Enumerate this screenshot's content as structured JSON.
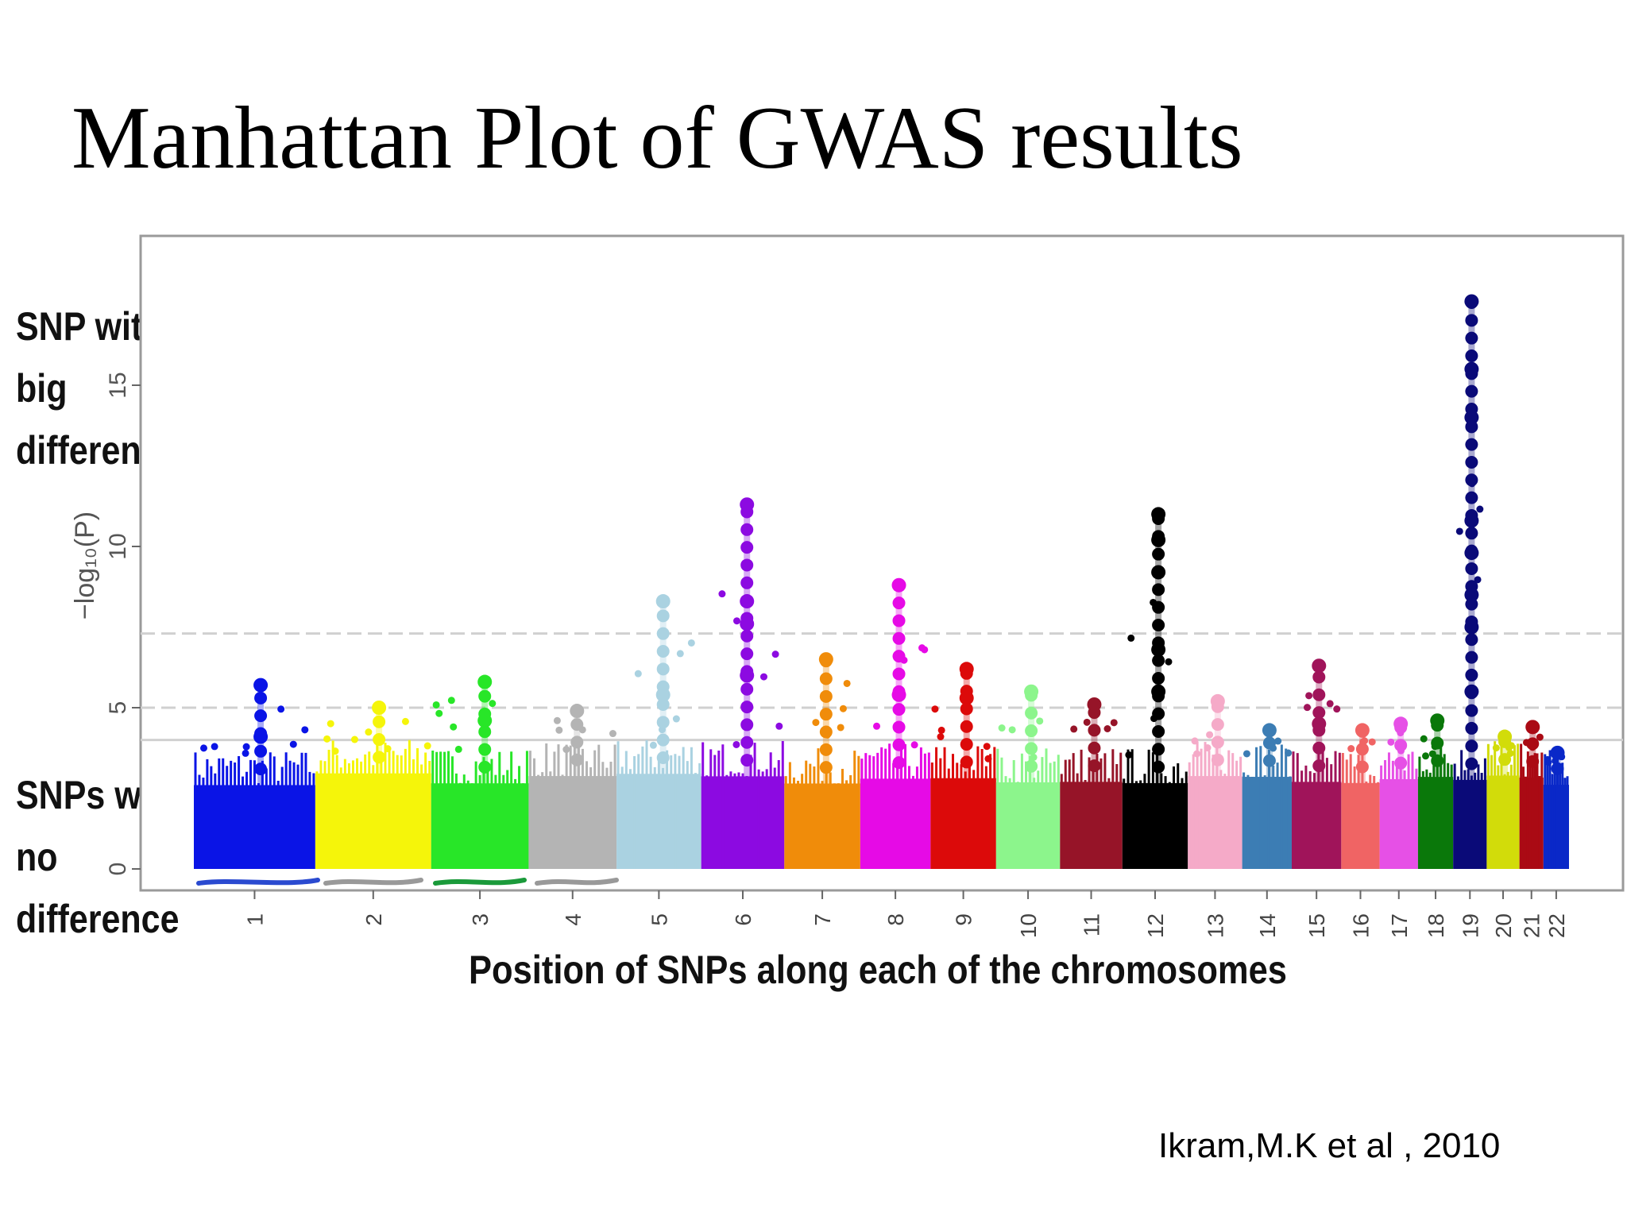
{
  "slide": {
    "title": "Manhattan Plot of GWAS results",
    "annotation_top": [
      "SNP with",
      "big",
      "difference"
    ],
    "annotation_bottom": [
      "SNPs with",
      "no",
      "difference"
    ],
    "citation": "Ikram,M.K et al , 2010"
  },
  "chart_data": {
    "type": "scatter",
    "title": "",
    "xlabel": "Position of SNPs along each of the chromosomes",
    "ylabel": "−log₁₀(P)",
    "ylim": [
      0,
      19
    ],
    "yticks": [
      0,
      5,
      10,
      15
    ],
    "grid": false,
    "significance_lines": [
      7.3,
      5.0,
      4.0
    ],
    "chromosomes": [
      {
        "label": "1",
        "color": "#0a14e6",
        "max": 5.7,
        "peaks": [
          5.7,
          4.1
        ]
      },
      {
        "label": "2",
        "color": "#f5f50a",
        "max": 5.0,
        "peaks": [
          5.0
        ]
      },
      {
        "label": "3",
        "color": "#28e628",
        "max": 5.8,
        "peaks": [
          5.8,
          4.6
        ]
      },
      {
        "label": "4",
        "color": "#b4b4b4",
        "max": 4.9,
        "peaks": [
          4.9
        ]
      },
      {
        "label": "5",
        "color": "#aad2e1",
        "max": 8.3,
        "peaks": [
          8.3,
          5.4
        ]
      },
      {
        "label": "6",
        "color": "#8c0ae1",
        "max": 11.3,
        "peaks": [
          11.3,
          8.3,
          7.6,
          6.0
        ]
      },
      {
        "label": "7",
        "color": "#f08c0a",
        "max": 6.5,
        "peaks": [
          6.5
        ]
      },
      {
        "label": "8",
        "color": "#e60ae6",
        "max": 8.8,
        "peaks": [
          8.8,
          5.4
        ]
      },
      {
        "label": "9",
        "color": "#dc0a0a",
        "max": 6.2,
        "peaks": [
          6.2,
          5.3
        ]
      },
      {
        "label": "10",
        "color": "#8cf58c",
        "max": 5.5,
        "peaks": [
          5.5
        ]
      },
      {
        "label": "11",
        "color": "#961428",
        "max": 5.1,
        "peaks": [
          5.1
        ]
      },
      {
        "label": "12",
        "color": "#000000",
        "max": 11.0,
        "peaks": [
          11.0,
          10.2,
          9.2,
          6.8,
          5.5
        ]
      },
      {
        "label": "13",
        "color": "#f5aac8",
        "max": 5.2,
        "peaks": [
          5.2
        ]
      },
      {
        "label": "14",
        "color": "#3c7db4",
        "max": 4.3,
        "peaks": [
          4.3
        ]
      },
      {
        "label": "15",
        "color": "#a0145a",
        "max": 6.3,
        "peaks": [
          6.3,
          4.5
        ]
      },
      {
        "label": "16",
        "color": "#f06464",
        "max": 4.3,
        "peaks": [
          4.3
        ]
      },
      {
        "label": "17",
        "color": "#e650e6",
        "max": 4.5,
        "peaks": [
          4.5
        ]
      },
      {
        "label": "18",
        "color": "#0a780a",
        "max": 4.6,
        "peaks": [
          4.6
        ]
      },
      {
        "label": "19",
        "color": "#0a0a78",
        "max": 17.6,
        "peaks": [
          17.6,
          15.5,
          14.0,
          10.8,
          9.8,
          8.5,
          7.5,
          5.5
        ]
      },
      {
        "label": "20",
        "color": "#d2dc0a",
        "max": 4.1,
        "peaks": [
          4.1
        ]
      },
      {
        "label": "21",
        "color": "#aa0a14",
        "max": 4.4,
        "peaks": [
          4.4
        ]
      },
      {
        "label": "22",
        "color": "#0a28c8",
        "max": 3.6,
        "peaks": [
          3.6
        ]
      }
    ]
  }
}
